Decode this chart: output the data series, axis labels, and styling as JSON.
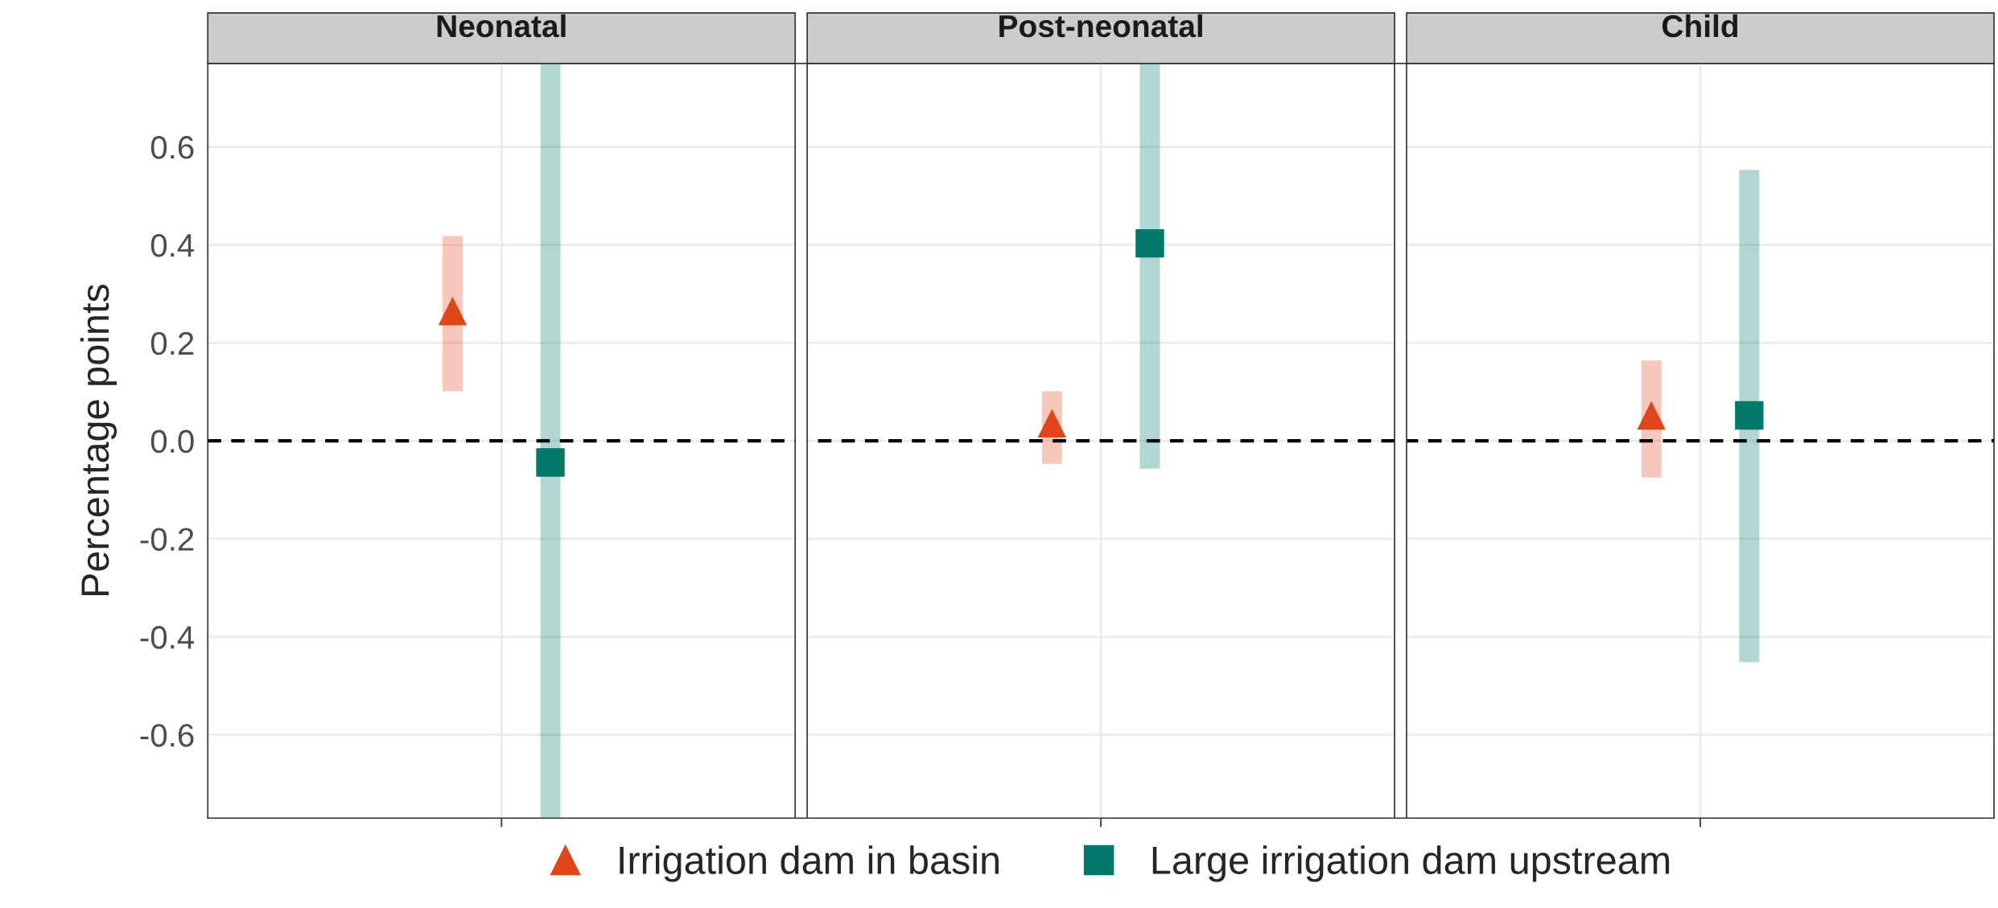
{
  "chart_data": {
    "type": "scatter",
    "ylabel": "Percentage points",
    "categories": [
      "Neonatal",
      "Post-neonatal",
      "Child"
    ],
    "series": [
      {
        "name": "Irrigation dam in basin",
        "color": "#e0461a",
        "marker": "triangle",
        "values": [
          0.265,
          0.036,
          0.052
        ],
        "errors": [
          [
            0.101,
            0.418
          ],
          [
            -0.047,
            0.101
          ],
          [
            -0.075,
            0.164
          ]
        ]
      },
      {
        "name": "Large irrigation dam upstream",
        "color": "#00796b",
        "marker": "square",
        "values": [
          -0.044,
          0.403,
          0.052
        ],
        "errors": [
          [
            -0.77,
            0.77
          ],
          [
            -0.057,
            0.77
          ],
          [
            -0.452,
            0.553
          ]
        ]
      }
    ],
    "ylim": [
      -0.77,
      0.77
    ],
    "yticks": [
      -0.6,
      -0.4,
      -0.2,
      {
        "value": 0,
        "label": "0.0"
      },
      0.2,
      0.4,
      0.6
    ],
    "grid": true,
    "legend": "bottom",
    "ref_lines": [
      {
        "axis": "y",
        "value": 0,
        "color": "#000000",
        "line_style": "dashed"
      }
    ]
  }
}
